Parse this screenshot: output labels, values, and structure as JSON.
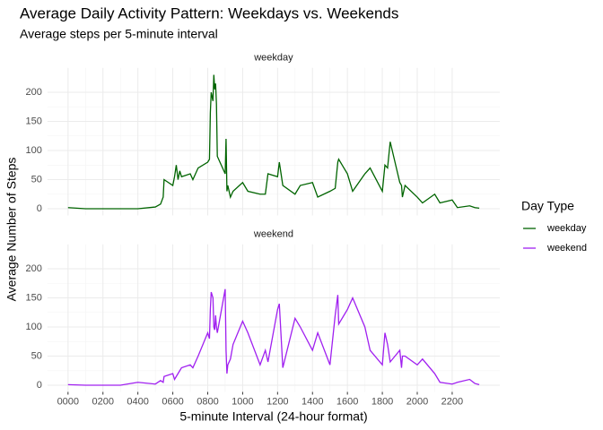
{
  "chart_data": {
    "type": "line",
    "facet": "series",
    "title": "Average Daily Activity Pattern: Weekdays vs. Weekends",
    "subtitle": "Average steps per 5-minute interval",
    "x_label": "5-minute Interval (24-hour format)",
    "y_label": "Average Number of Steps",
    "legend_title": "Day Type",
    "legend": "right",
    "grid": true,
    "x": [
      0,
      100,
      200,
      300,
      400,
      500,
      530,
      545,
      550,
      600,
      610,
      620,
      630,
      640,
      650,
      700,
      715,
      730,
      745,
      800,
      810,
      815,
      820,
      830,
      835,
      840,
      845,
      850,
      855,
      900,
      905,
      910,
      915,
      930,
      945,
      1000,
      1030,
      1100,
      1130,
      1145,
      1200,
      1210,
      1230,
      1300,
      1330,
      1400,
      1430,
      1500,
      1530,
      1545,
      1550,
      1600,
      1630,
      1700,
      1730,
      1800,
      1815,
      1830,
      1845,
      1900,
      1910,
      1915,
      1930,
      2000,
      2030,
      2100,
      2130,
      2200,
      2230,
      2300,
      2330,
      2355
    ],
    "series": [
      {
        "name": "weekday",
        "color": "#006400",
        "values": [
          2,
          0,
          0,
          0,
          0,
          3,
          8,
          20,
          50,
          40,
          55,
          75,
          50,
          65,
          55,
          60,
          50,
          60,
          70,
          80,
          85,
          165,
          200,
          185,
          230,
          205,
          215,
          180,
          90,
          60,
          120,
          30,
          40,
          20,
          30,
          45,
          30,
          25,
          25,
          60,
          55,
          80,
          40,
          25,
          40,
          45,
          20,
          30,
          35,
          80,
          85,
          60,
          30,
          60,
          70,
          30,
          75,
          70,
          115,
          45,
          40,
          20,
          40,
          20,
          10,
          25,
          10,
          15,
          2,
          5,
          2,
          1
        ]
      },
      {
        "name": "weekend",
        "color": "#a020f0",
        "values": [
          1,
          0,
          0,
          0,
          5,
          2,
          8,
          5,
          15,
          20,
          10,
          15,
          20,
          25,
          30,
          35,
          30,
          40,
          50,
          90,
          80,
          130,
          160,
          150,
          100,
          95,
          120,
          100,
          90,
          165,
          60,
          20,
          35,
          45,
          70,
          110,
          90,
          35,
          60,
          40,
          130,
          140,
          30,
          115,
          100,
          60,
          90,
          35,
          120,
          155,
          105,
          130,
          150,
          100,
          60,
          35,
          90,
          70,
          40,
          60,
          30,
          50,
          50,
          35,
          45,
          20,
          5,
          2,
          5,
          10,
          3,
          1
        ]
      }
    ],
    "xlim": [
      -117.75,
      2472.75
    ],
    "xticks": [
      {
        "value": 0,
        "label": "0000"
      },
      {
        "value": 200,
        "label": "0200"
      },
      {
        "value": 400,
        "label": "0400"
      },
      {
        "value": 600,
        "label": "0600"
      },
      {
        "value": 800,
        "label": "0800"
      },
      1000,
      1200,
      1400,
      1600,
      1800,
      2000,
      2200
    ],
    "ylim": [
      -11.5,
      242
    ],
    "yticks": [
      0,
      50,
      100,
      150,
      200
    ]
  }
}
